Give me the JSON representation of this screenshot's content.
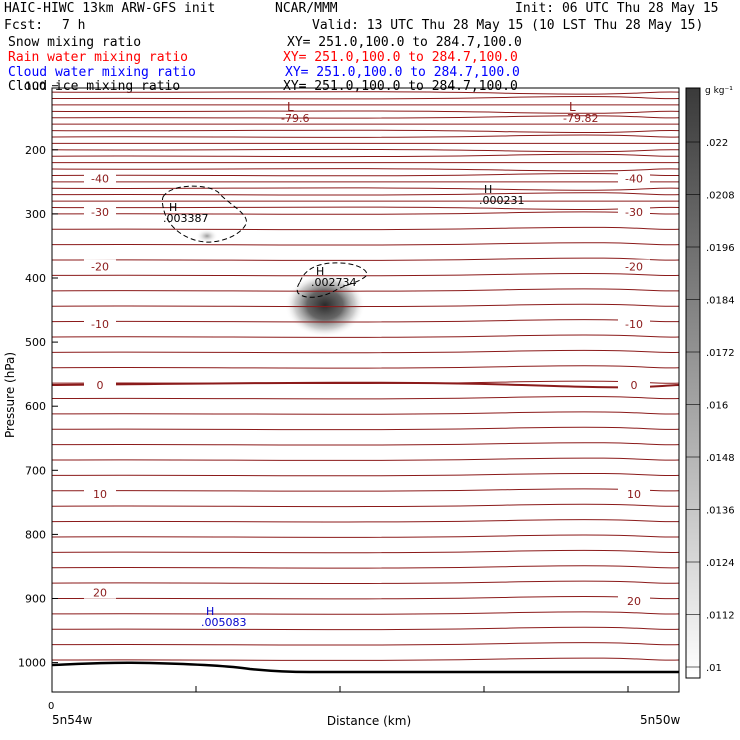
{
  "header": {
    "model": "HAIC-HIWC 13km ARW-GFS init",
    "org": "NCAR/MMM",
    "init": "Init: 06 UTC Thu 28 May 15",
    "fcst_label": "Fcst:",
    "fcst_value": "7 h",
    "valid": "Valid: 13 UTC Thu 28 May 15 (10 LST Thu 28 May 15)",
    "fields": [
      {
        "name": "Snow mixing ratio",
        "xy": "XY= 251.0,100.0 to 284.7,100.0",
        "color": "#000000"
      },
      {
        "name": "Rain water mixing ratio",
        "xy": "XY= 251.0,100.0 to 284.7,100.0",
        "color": "#ff0000"
      },
      {
        "name": "Cloud water mixing ratio",
        "xy": "XY= 251.0,100.0 to 284.7,100.0",
        "color": "#0000ff"
      },
      {
        "name": "Cloud ice mixing ratio",
        "xy": "XY= 251.0,100.0 to 284.7,100.0",
        "color": "#000000"
      }
    ]
  },
  "chart_data": {
    "type": "contour",
    "ylabel": "Pressure (hPa)",
    "xlabel": "Distance (km)",
    "x_start_tick": "0",
    "x_left_label": "5n54w",
    "x_right_label": "5n50w",
    "y_ticks": [
      100,
      200,
      300,
      400,
      500,
      600,
      700,
      800,
      900,
      1000
    ],
    "colorbar": {
      "unit_label": "g kg⁻¹",
      "ticks": [
        ".022",
        ".0208",
        ".0196",
        ".0184",
        ".0172",
        ".016",
        ".0148",
        ".0136",
        ".0124",
        ".0112",
        ".01"
      ]
    },
    "temperature_contour_labels": [
      {
        "text": "-40",
        "p": 245,
        "side": "left"
      },
      {
        "text": "-30",
        "p": 297,
        "side": "left"
      },
      {
        "text": "-20",
        "p": 382,
        "side": "left"
      },
      {
        "text": "-10",
        "p": 472,
        "side": "left"
      },
      {
        "text": "0",
        "p": 567,
        "side": "left"
      },
      {
        "text": "10",
        "p": 737,
        "side": "left"
      },
      {
        "text": "20",
        "p": 891,
        "side": "left"
      },
      {
        "text": "-40",
        "p": 245,
        "side": "right"
      },
      {
        "text": "-30",
        "p": 297,
        "side": "right"
      },
      {
        "text": "-20",
        "p": 382,
        "side": "right"
      },
      {
        "text": "-10",
        "p": 472,
        "side": "right"
      },
      {
        "text": "0",
        "p": 567,
        "side": "right"
      },
      {
        "text": "10",
        "p": 737,
        "side": "right"
      },
      {
        "text": "20",
        "p": 904,
        "side": "right"
      }
    ],
    "extrema": [
      {
        "kind": "L",
        "value": "-79.6",
        "color": "#8b1a1a"
      },
      {
        "kind": "L",
        "value": "-79.82",
        "color": "#8b1a1a"
      },
      {
        "kind": "H",
        "value": ".003387",
        "color": "#000000"
      },
      {
        "kind": "H",
        "value": ".000231",
        "color": "#000000"
      },
      {
        "kind": "H",
        "value": ".002734",
        "color": "#000000"
      },
      {
        "kind": "H",
        "value": ".005083",
        "color": "#0000cc"
      }
    ]
  }
}
